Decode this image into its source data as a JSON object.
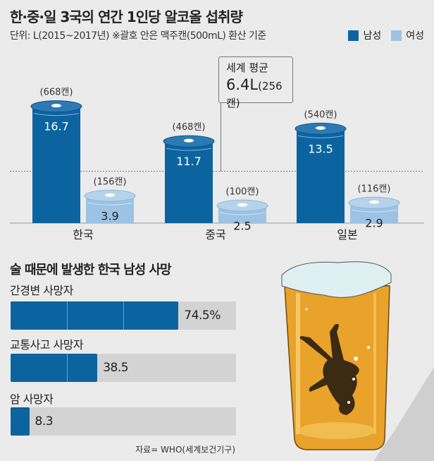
{
  "header": {
    "title": "한·중·일 3국의 연간 1인당 알코올 섭취량",
    "subtitle": "단위: L(2015~2017년)   ※괄호 안은 맥주캔(500mL) 환산 기준",
    "legend": [
      {
        "label": "남성",
        "color": "#0b64a0"
      },
      {
        "label": "여성",
        "color": "#9cc3e3"
      }
    ]
  },
  "world_average": {
    "label": "세계 평균",
    "value_text": "6.4L",
    "cans_text": "(256캔)"
  },
  "deaths": {
    "title": "술 때문에 발생한 한국 남성 사망",
    "source": "자료= WHO(세계보건기구)"
  },
  "chart_data": [
    {
      "type": "bar",
      "title": "한·중·일 3국의 연간 1인당 알코올 섭취량",
      "unit": "L",
      "categories": [
        "한국",
        "중국",
        "일본"
      ],
      "series": [
        {
          "name": "남성",
          "color": "#0b64a0",
          "values": [
            16.7,
            11.7,
            13.5
          ],
          "labels": [
            "16.7",
            "11.7",
            "13.5"
          ],
          "cans": [
            "(668캔)",
            "(468캔)",
            "(540캔)"
          ]
        },
        {
          "name": "여성",
          "color": "#9cc3e3",
          "values": [
            3.9,
            2.5,
            2.9
          ],
          "labels": [
            "3.9",
            "2.5",
            "2.9"
          ],
          "cans": [
            "(156캔)",
            "(100캔)",
            "(116캔)"
          ]
        }
      ],
      "reference_line": {
        "label": "세계 평균",
        "value": 6.4
      },
      "ylim": [
        0,
        17
      ]
    },
    {
      "type": "bar",
      "orientation": "horizontal",
      "title": "술 때문에 발생한 한국 남성 사망",
      "categories": [
        "간경변 사망자",
        "교통사고 사망자",
        "암 사망자"
      ],
      "values": [
        74.5,
        38.5,
        8.3
      ],
      "labels": [
        "74.5%",
        "38.5",
        "8.3"
      ],
      "xlim": [
        0,
        100
      ]
    }
  ]
}
